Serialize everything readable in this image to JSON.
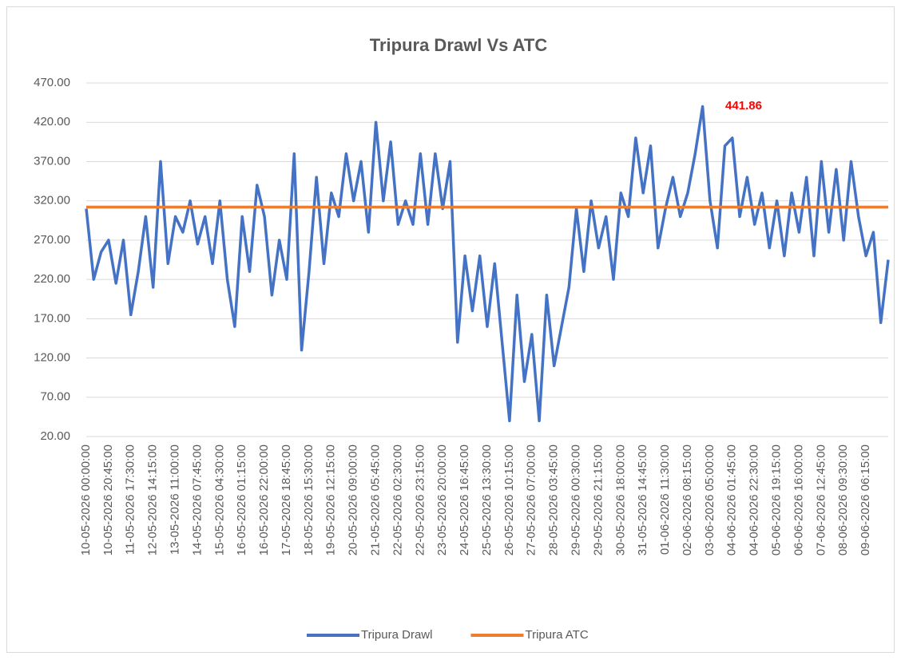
{
  "chart_data": {
    "type": "line",
    "title": "Tripura Drawl Vs ATC",
    "annotation": "441.86",
    "categories": [
      "10-05-2026 00:00:00",
      null,
      null,
      "10-05-2026 20:45:00",
      null,
      null,
      "11-05-2026 17:30:00",
      null,
      null,
      "12-05-2026 14:15:00",
      null,
      null,
      "13-05-2026 11:00:00",
      null,
      null,
      "14-05-2026 07:45:00",
      null,
      null,
      "15-05-2026 04:30:00",
      null,
      null,
      "16-05-2026 01:15:00",
      null,
      null,
      "16-05-2026 22:00:00",
      null,
      null,
      "17-05-2026 18:45:00",
      null,
      null,
      "18-05-2026 15:30:00",
      null,
      null,
      "19-05-2026 12:15:00",
      null,
      null,
      "20-05-2026 09:00:00",
      null,
      null,
      "21-05-2026 05:45:00",
      null,
      null,
      "22-05-2026 02:30:00",
      null,
      null,
      "22-05-2026 23:15:00",
      null,
      null,
      "23-05-2026 20:00:00",
      null,
      null,
      "24-05-2026 16:45:00",
      null,
      null,
      "25-05-2026 13:30:00",
      null,
      null,
      "26-05-2026 10:15:00",
      null,
      null,
      "27-05-2026 07:00:00",
      null,
      null,
      "28-05-2026 03:45:00",
      null,
      null,
      "29-05-2026 00:30:00",
      null,
      null,
      "29-05-2026 21:15:00",
      null,
      null,
      "30-05-2026 18:00:00",
      null,
      null,
      "31-05-2026 14:45:00",
      null,
      null,
      "01-06-2026 11:30:00",
      null,
      null,
      "02-06-2026 08:15:00",
      null,
      null,
      "03-06-2026 05:00:00",
      null,
      null,
      "04-06-2026 01:45:00",
      null,
      null,
      "04-06-2026 22:30:00",
      null,
      null,
      "05-06-2026 19:15:00",
      null,
      null,
      "06-06-2026 16:00:00",
      null,
      null,
      "07-06-2026 12:45:00",
      null,
      null,
      "08-06-2026 09:30:00",
      null,
      null,
      "09-06-2026 06:15:00",
      null,
      null,
      null
    ],
    "series": [
      {
        "name": "Tripura Drawl",
        "color": "#4472c4",
        "values": [
          310,
          220,
          255,
          270,
          215,
          270,
          175,
          230,
          300,
          210,
          370,
          240,
          300,
          280,
          320,
          265,
          300,
          240,
          320,
          220,
          160,
          300,
          230,
          340,
          300,
          200,
          270,
          220,
          380,
          130,
          230,
          350,
          240,
          330,
          300,
          380,
          320,
          370,
          280,
          420,
          320,
          395,
          290,
          320,
          290,
          380,
          290,
          380,
          310,
          370,
          140,
          250,
          180,
          250,
          160,
          240,
          140,
          40,
          200,
          90,
          150,
          40,
          200,
          110,
          160,
          210,
          310,
          230,
          320,
          260,
          300,
          220,
          330,
          300,
          400,
          330,
          390,
          260,
          310,
          350,
          300,
          330,
          380,
          440,
          320,
          260,
          390,
          400,
          300,
          350,
          290,
          330,
          260,
          320,
          250,
          330,
          280,
          350,
          250,
          370,
          280,
          360,
          270,
          370,
          300,
          250,
          280,
          165,
          245
        ]
      },
      {
        "name": "Tripura ATC",
        "color": "#ed7d31",
        "values": [
          312,
          312,
          312,
          312,
          312,
          312,
          312,
          312,
          312,
          312,
          312,
          312,
          312,
          312,
          312,
          312,
          312,
          312,
          312,
          312,
          312,
          312,
          312,
          312,
          312,
          312,
          312,
          312,
          312,
          312,
          312,
          312,
          312,
          312,
          312,
          312,
          312,
          312,
          312,
          312,
          312,
          312,
          312,
          312,
          312,
          312,
          312,
          312,
          312,
          312,
          312,
          312,
          312,
          312,
          312,
          312,
          312,
          312,
          312,
          312,
          312,
          312,
          312,
          312,
          312,
          312,
          312,
          312,
          312,
          312,
          312,
          312,
          312,
          312,
          312,
          312,
          312,
          312,
          312,
          312,
          312,
          312,
          312,
          312,
          312,
          312,
          312,
          312,
          312,
          312,
          312,
          312,
          312,
          312,
          312,
          312,
          312,
          312,
          312,
          312,
          312,
          312,
          312,
          312,
          312,
          312,
          312,
          312,
          312
        ]
      }
    ],
    "ylim": [
      20,
      470
    ],
    "yticks": [
      {
        "value": 20,
        "label": "20.00"
      },
      {
        "value": 70,
        "label": "70.00"
      },
      {
        "value": 120,
        "label": "120.00"
      },
      {
        "value": 170,
        "label": "170.00"
      },
      {
        "value": 220,
        "label": "220.00"
      },
      {
        "value": 270,
        "label": "270.00"
      },
      {
        "value": 320,
        "label": "320.00"
      },
      {
        "value": 370,
        "label": "370.00"
      },
      {
        "value": 420,
        "label": "420.00"
      },
      {
        "value": 470,
        "label": "470.00"
      }
    ],
    "grid": true,
    "legend": "bottom"
  }
}
